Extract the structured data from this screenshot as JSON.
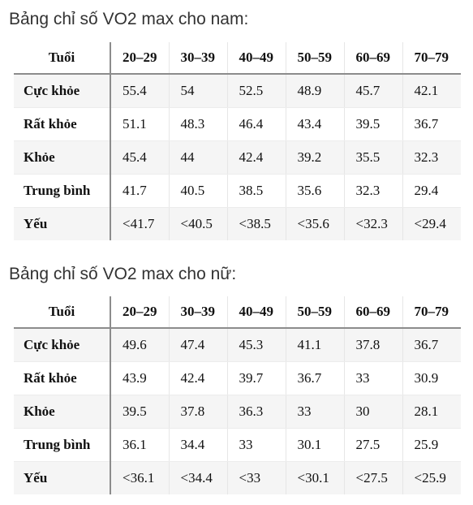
{
  "men": {
    "title": "Bảng chỉ số VO2 max cho nam:",
    "corner": "Tuổi",
    "columns": [
      "20–29",
      "30–39",
      "40–49",
      "50–59",
      "60–69",
      "70–79"
    ],
    "rows": [
      {
        "label": "Cực khỏe",
        "values": [
          "55.4",
          "54",
          "52.5",
          "48.9",
          "45.7",
          "42.1"
        ]
      },
      {
        "label": "Rất khỏe",
        "values": [
          "51.1",
          "48.3",
          "46.4",
          "43.4",
          "39.5",
          "36.7"
        ]
      },
      {
        "label": "Khỏe",
        "values": [
          "45.4",
          "44",
          "42.4",
          "39.2",
          "35.5",
          "32.3"
        ]
      },
      {
        "label": "Trung bình",
        "values": [
          "41.7",
          "40.5",
          "38.5",
          "35.6",
          "32.3",
          "29.4"
        ]
      },
      {
        "label": "Yếu",
        "values": [
          "<41.7",
          "<40.5",
          "<38.5",
          "<35.6",
          "<32.3",
          "<29.4"
        ]
      }
    ]
  },
  "women": {
    "title": "Bảng chỉ số VO2 max cho nữ:",
    "corner": "Tuổi",
    "columns": [
      "20–29",
      "30–39",
      "40–49",
      "50–59",
      "60–69",
      "70–79"
    ],
    "rows": [
      {
        "label": "Cực khỏe",
        "values": [
          "49.6",
          "47.4",
          "45.3",
          "41.1",
          "37.8",
          "36.7"
        ]
      },
      {
        "label": "Rất khỏe",
        "values": [
          "43.9",
          "42.4",
          "39.7",
          "36.7",
          "33",
          "30.9"
        ]
      },
      {
        "label": "Khỏe",
        "values": [
          "39.5",
          "37.8",
          "36.3",
          "33",
          "30",
          "28.1"
        ]
      },
      {
        "label": "Trung bình",
        "values": [
          "36.1",
          "34.4",
          "33",
          "30.1",
          "27.5",
          "25.9"
        ]
      },
      {
        "label": "Yếu",
        "values": [
          "<36.1",
          "<34.4",
          "<33",
          "<30.1",
          "<27.5",
          "<25.9"
        ]
      }
    ]
  }
}
